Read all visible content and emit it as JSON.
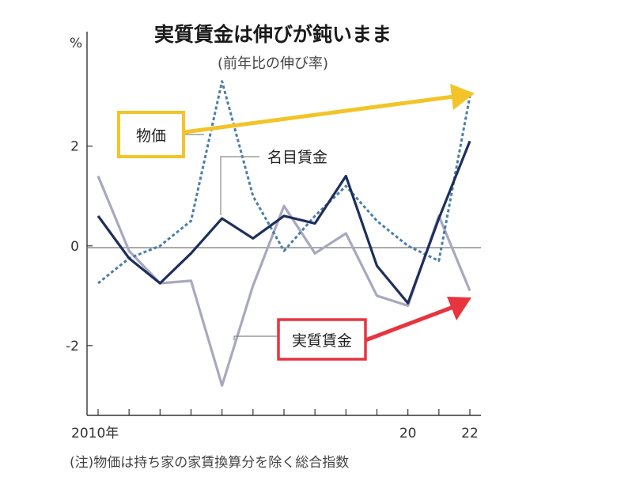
{
  "chart_data": {
    "type": "line",
    "title": "実質賃金は伸びが鈍いまま",
    "subtitle": "(前年比の伸び率)",
    "y_unit": "%",
    "note": "(注)物価は持ち家の家賃換算分を除く総合指数",
    "x": [
      2010,
      2011,
      2012,
      2013,
      2014,
      2015,
      2016,
      2017,
      2018,
      2019,
      2020,
      2021,
      2022
    ],
    "x_tick_labels": [
      {
        "x": 2010,
        "label": "2010年"
      },
      {
        "x": 2020,
        "label": "20"
      },
      {
        "x": 2022,
        "label": "22"
      }
    ],
    "ylim": [
      -3.4,
      3.9
    ],
    "y_ticks": [
      2,
      0,
      -2
    ],
    "y_tick_labels": [
      "2",
      "0",
      "-2"
    ],
    "grid": false,
    "series": [
      {
        "name": "物価",
        "values": [
          -0.75,
          -0.25,
          0.0,
          0.5,
          3.3,
          1.0,
          -0.1,
          0.6,
          1.2,
          0.5,
          0.0,
          -0.3,
          3.0
        ],
        "color": "#4a7fa8",
        "style": "dotted"
      },
      {
        "name": "名目賃金",
        "values": [
          0.6,
          -0.25,
          -0.75,
          -0.15,
          0.55,
          0.15,
          0.6,
          0.45,
          1.4,
          -0.4,
          -1.15,
          0.55,
          2.1
        ],
        "color": "#1f2f5c",
        "style": "solid"
      },
      {
        "name": "実質賃金",
        "values": [
          1.4,
          -0.1,
          -0.75,
          -0.7,
          -2.8,
          -0.8,
          0.8,
          -0.15,
          0.25,
          -1.0,
          -1.2,
          0.6,
          -0.9
        ],
        "color": "#a8a8c0",
        "style": "solid"
      }
    ],
    "highlight_colors": {
      "price": "#f2c428",
      "real_wage": "#e8343f"
    }
  }
}
